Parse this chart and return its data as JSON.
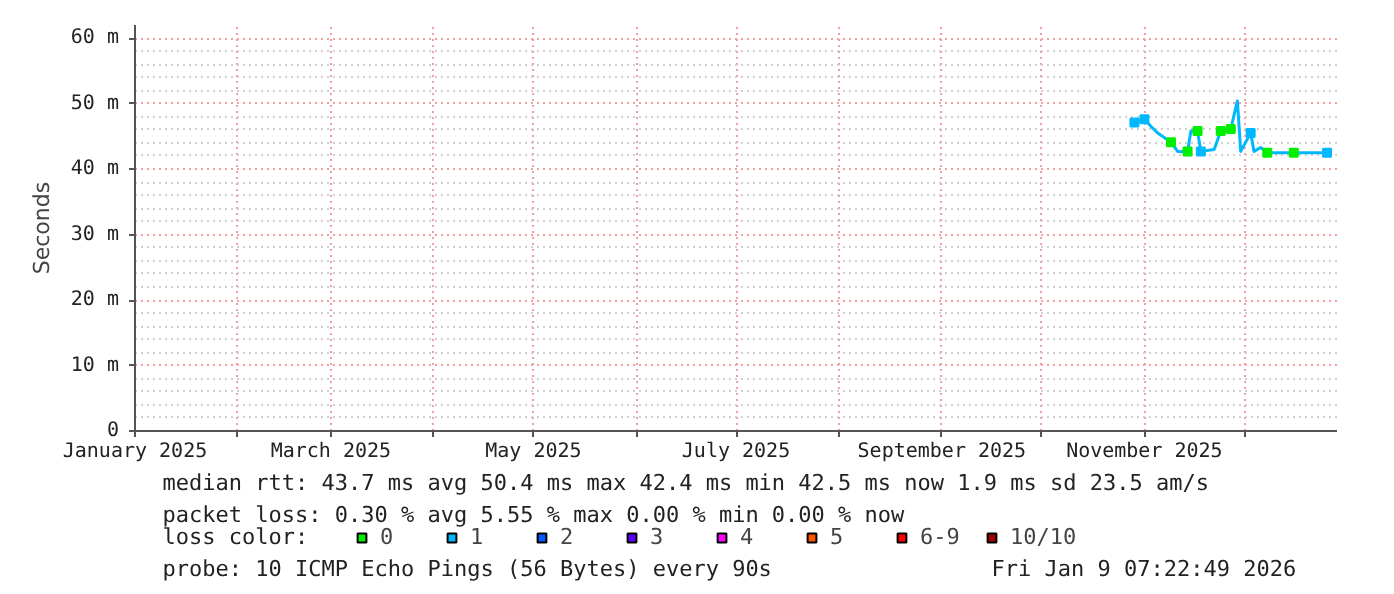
{
  "chart_data": {
    "type": "line",
    "ylabel": "Seconds",
    "xlim": [
      "2025-01-01",
      "2025-12-29"
    ],
    "ylim": [
      0,
      62
    ],
    "xticks": [
      {
        "value": "2025-01-01",
        "label": "January 2025"
      },
      {
        "value": "2025-02-01",
        "label": null
      },
      {
        "value": "2025-03-01",
        "label": "March 2025"
      },
      {
        "value": "2025-04-01",
        "label": null
      },
      {
        "value": "2025-05-01",
        "label": "May 2025"
      },
      {
        "value": "2025-06-01",
        "label": null
      },
      {
        "value": "2025-07-01",
        "label": "July 2025"
      },
      {
        "value": "2025-08-01",
        "label": null
      },
      {
        "value": "2025-09-01",
        "label": "September 2025"
      },
      {
        "value": "2025-10-01",
        "label": null
      },
      {
        "value": "2025-11-01",
        "label": "November 2025"
      },
      {
        "value": "2025-12-01",
        "label": null
      }
    ],
    "yticks": [
      0,
      {
        "value": 10,
        "label": "10 m"
      },
      {
        "value": 20,
        "label": "20 m"
      },
      {
        "value": 30,
        "label": "30 m"
      },
      {
        "value": 40,
        "label": "40 m"
      },
      {
        "value": 50,
        "label": "50 m"
      },
      {
        "value": 60,
        "label": "60 m"
      }
    ],
    "grid": true,
    "legend": "bottom left",
    "legend_title": "loss color:",
    "series": [
      {
        "color": "#00b8ff",
        "x": [
          "2025-10-29",
          "2025-11-01",
          "2025-11-03",
          "2025-11-05",
          "2025-11-09",
          "2025-11-11",
          "2025-11-14",
          "2025-11-15",
          "2025-11-17",
          "2025-11-18",
          "2025-11-22",
          "2025-11-24",
          "2025-11-27",
          "2025-11-29",
          "2025-11-30",
          "2025-12-03",
          "2025-12-04",
          "2025-12-06",
          "2025-12-08",
          "2025-12-16",
          "2025-12-26",
          "2025-12-27"
        ],
        "values": [
          47.1,
          47.6,
          46.5,
          45.5,
          44.1,
          42.7,
          42.7,
          45.8,
          45.8,
          42.7,
          43.0,
          45.8,
          46.1,
          50.4,
          42.7,
          45.5,
          42.7,
          43.3,
          42.5,
          42.5,
          42.5,
          43.0
        ]
      },
      {
        "type": "scatter",
        "marker": "square",
        "name": "0",
        "color": "#00ee00",
        "x": [
          "2025-11-09",
          "2025-11-14",
          "2025-11-17",
          "2025-11-24",
          "2025-11-27",
          "2025-12-08",
          "2025-12-16"
        ],
        "values": [
          44.1,
          42.7,
          45.8,
          45.8,
          46.1,
          42.5,
          42.5
        ]
      },
      {
        "type": "scatter",
        "marker": "square",
        "name": "1",
        "color": "#00b8ff",
        "x": [
          "2025-10-29",
          "2025-11-01",
          "2025-11-18",
          "2025-12-03",
          "2025-12-26"
        ],
        "values": [
          47.1,
          47.6,
          42.7,
          45.5,
          42.5
        ]
      },
      {
        "type": "scatter",
        "name": "2",
        "color": "#0059ff"
      },
      {
        "type": "scatter",
        "name": "3",
        "color": "#5e00ff"
      },
      {
        "type": "scatter",
        "name": "4",
        "color": "#ff00ff"
      },
      {
        "type": "scatter",
        "name": "5",
        "color": "#ff5500"
      },
      {
        "type": "scatter",
        "name": "6-9",
        "color": "#ff0000"
      },
      {
        "type": "scatter",
        "name": "10/10",
        "color": "#a10000"
      }
    ],
    "annotations": [
      "median rtt:  43.7 ms avg  50.4 ms max  42.4 ms min  42.5 ms now  1.9 ms sd  23.5   am/s",
      "packet loss: 0.30 % avg  5.55 % max  0.00 % min  0.00 % now",
      "probe:       10 ICMP Echo Pings (56 Bytes) every 90s",
      "Fri Jan  9 07:22:49 2026"
    ]
  }
}
